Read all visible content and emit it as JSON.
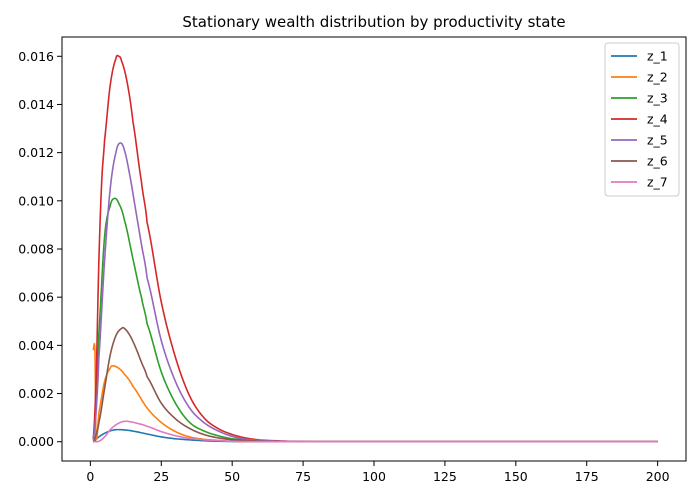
{
  "chart_data": {
    "type": "line",
    "title": "Stationary wealth distribution by productivity state",
    "xlabel": "",
    "ylabel": "",
    "xlim": [
      -10,
      210
    ],
    "ylim": [
      -0.0008,
      0.0168
    ],
    "xticks": [
      0,
      25,
      50,
      75,
      100,
      125,
      150,
      175,
      200
    ],
    "yticks": [
      0.0,
      0.002,
      0.004,
      0.006,
      0.008,
      0.01,
      0.012,
      0.014,
      0.016
    ],
    "ytick_labels": [
      "0.000",
      "0.002",
      "0.004",
      "0.006",
      "0.008",
      "0.010",
      "0.012",
      "0.014",
      "0.016"
    ],
    "xtick_labels": [
      "0",
      "25",
      "50",
      "75",
      "100",
      "125",
      "150",
      "175",
      "200"
    ],
    "grid": false,
    "legend_position": "top-right",
    "x_range": [
      1,
      200
    ],
    "series": [
      {
        "name": "z_1",
        "color": "#1f77b4",
        "points": [
          [
            1,
            0.0
          ],
          [
            3,
            0.0002
          ],
          [
            5,
            0.00035
          ],
          [
            7,
            0.00045
          ],
          [
            9,
            0.0005
          ],
          [
            12,
            0.00049
          ],
          [
            15,
            0.00044
          ],
          [
            20,
            0.00032
          ],
          [
            25,
            0.0002
          ],
          [
            30,
            0.00012
          ],
          [
            40,
            4e-05
          ],
          [
            50,
            1e-05
          ],
          [
            60,
            0.0
          ],
          [
            80,
            0.0
          ],
          [
            200,
            0.0
          ]
        ]
      },
      {
        "name": "z_2",
        "color": "#ff7f0e",
        "points": [
          [
            1,
            0.0038
          ],
          [
            1.6,
            0.0038
          ],
          [
            2,
            0.0002
          ],
          [
            3,
            0.0012
          ],
          [
            5,
            0.0025
          ],
          [
            7,
            0.00305
          ],
          [
            8,
            0.00315
          ],
          [
            10,
            0.00305
          ],
          [
            12,
            0.0028
          ],
          [
            15,
            0.0023
          ],
          [
            20,
            0.0014
          ],
          [
            25,
            0.0008
          ],
          [
            30,
            0.00042
          ],
          [
            35,
            0.0002
          ],
          [
            40,
            0.0001
          ],
          [
            50,
            2e-05
          ],
          [
            60,
            0.0
          ],
          [
            200,
            0.0
          ]
        ]
      },
      {
        "name": "z_3",
        "color": "#2ca02c",
        "points": [
          [
            1,
            0.0001
          ],
          [
            2,
            0.0015
          ],
          [
            3,
            0.0045
          ],
          [
            5,
            0.0085
          ],
          [
            7,
            0.0098
          ],
          [
            8.5,
            0.0101
          ],
          [
            10,
            0.0099
          ],
          [
            12,
            0.0092
          ],
          [
            15,
            0.0076
          ],
          [
            18,
            0.006
          ],
          [
            20,
            0.0049
          ],
          [
            25,
            0.0029
          ],
          [
            30,
            0.0016
          ],
          [
            35,
            0.0008
          ],
          [
            40,
            0.00045
          ],
          [
            45,
            0.00025
          ],
          [
            50,
            0.00012
          ],
          [
            60,
            3e-05
          ],
          [
            70,
            0.0
          ],
          [
            200,
            0.0
          ]
        ]
      },
      {
        "name": "z_4",
        "color": "#d62728",
        "points": [
          [
            1,
            0.0001
          ],
          [
            2,
            0.0025
          ],
          [
            3,
            0.0075
          ],
          [
            4,
            0.0108
          ],
          [
            5,
            0.0125
          ],
          [
            7,
            0.0148
          ],
          [
            9,
            0.0159
          ],
          [
            10,
            0.016
          ],
          [
            11,
            0.0158
          ],
          [
            13,
            0.0149
          ],
          [
            15,
            0.0133
          ],
          [
            18,
            0.0108
          ],
          [
            20,
            0.0091
          ],
          [
            25,
            0.0058
          ],
          [
            30,
            0.0035
          ],
          [
            35,
            0.0019
          ],
          [
            40,
            0.001
          ],
          [
            45,
            0.00055
          ],
          [
            50,
            0.0003
          ],
          [
            55,
            0.00015
          ],
          [
            60,
            7e-05
          ],
          [
            70,
            2e-05
          ],
          [
            80,
            0.0
          ],
          [
            200,
            0.0
          ]
        ]
      },
      {
        "name": "z_5",
        "color": "#9467bd",
        "points": [
          [
            1,
            0.0001
          ],
          [
            2,
            0.0012
          ],
          [
            3,
            0.0035
          ],
          [
            5,
            0.0075
          ],
          [
            7,
            0.0105
          ],
          [
            9,
            0.012
          ],
          [
            10.5,
            0.0124
          ],
          [
            12,
            0.0121
          ],
          [
            14,
            0.011
          ],
          [
            16,
            0.0096
          ],
          [
            18,
            0.0082
          ],
          [
            20,
            0.0068
          ],
          [
            25,
            0.0042
          ],
          [
            30,
            0.0025
          ],
          [
            35,
            0.0014
          ],
          [
            40,
            0.0008
          ],
          [
            45,
            0.00045
          ],
          [
            50,
            0.00022
          ],
          [
            55,
            0.0001
          ],
          [
            60,
            5e-05
          ],
          [
            70,
            1e-05
          ],
          [
            80,
            0.0
          ],
          [
            200,
            0.0
          ]
        ]
      },
      {
        "name": "z_6",
        "color": "#8c564b",
        "points": [
          [
            1,
            0.0
          ],
          [
            2,
            0.0003
          ],
          [
            3,
            0.0008
          ],
          [
            5,
            0.0022
          ],
          [
            7,
            0.0036
          ],
          [
            9,
            0.0044
          ],
          [
            11,
            0.0047
          ],
          [
            12,
            0.0047
          ],
          [
            14,
            0.0044
          ],
          [
            16,
            0.0039
          ],
          [
            18,
            0.0033
          ],
          [
            20,
            0.0027
          ],
          [
            25,
            0.0016
          ],
          [
            30,
            0.00095
          ],
          [
            35,
            0.00055
          ],
          [
            40,
            0.0003
          ],
          [
            45,
            0.00016
          ],
          [
            50,
            8e-05
          ],
          [
            60,
            2e-05
          ],
          [
            70,
            0.0
          ],
          [
            200,
            0.0
          ]
        ]
      },
      {
        "name": "z_7",
        "color": "#e377c2",
        "points": [
          [
            1,
            0.0
          ],
          [
            3,
            2e-05
          ],
          [
            5,
            0.0002
          ],
          [
            7,
            0.0005
          ],
          [
            9,
            0.0007
          ],
          [
            11,
            0.00082
          ],
          [
            12.5,
            0.00085
          ],
          [
            14,
            0.00083
          ],
          [
            17,
            0.00075
          ],
          [
            20,
            0.00064
          ],
          [
            25,
            0.00042
          ],
          [
            30,
            0.00025
          ],
          [
            35,
            0.00014
          ],
          [
            40,
            8e-05
          ],
          [
            50,
            2e-05
          ],
          [
            60,
            0.0
          ],
          [
            200,
            0.0
          ]
        ]
      }
    ]
  }
}
